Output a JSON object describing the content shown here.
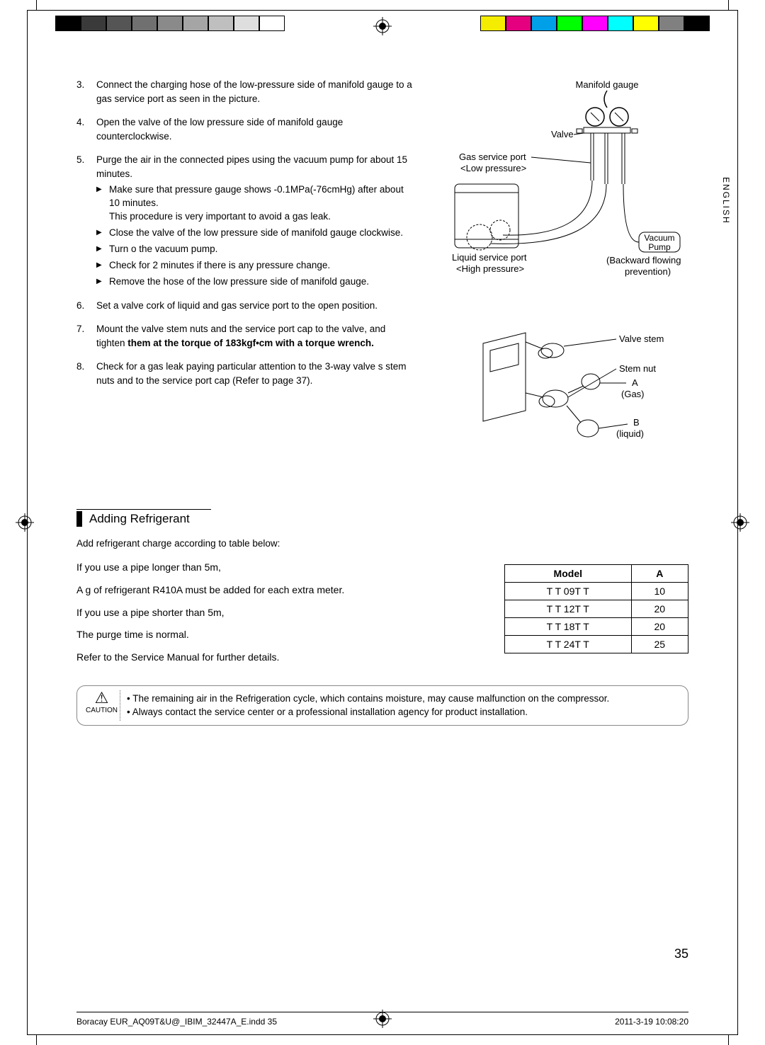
{
  "crop_marks": {
    "swatches_left": [
      "#000000",
      "#3a3a3a",
      "#555555",
      "#707070",
      "#8a8a8a",
      "#a5a5a5",
      "#bfbfbf",
      "#dedede",
      "#ffffff"
    ],
    "swatches_right": [
      "#f4ed00",
      "#e4007f",
      "#00a0e9",
      "#00ff00",
      "#ff00ff",
      "#00ffff",
      "#ffff00",
      "#808080",
      "#000000"
    ]
  },
  "side_language": "ENGLISH",
  "steps": {
    "3": {
      "num": "3.",
      "text": "Connect the charging hose of the low-pressure side of manifold gauge to a gas service port as seen in the picture."
    },
    "4": {
      "num": "4.",
      "text": "Open the valve of the low pressure side of manifold gauge counterclockwise."
    },
    "5": {
      "num": "5.",
      "text": "Purge the air in the connected pipes using the vacuum pump for about 15 minutes.",
      "subs": [
        "Make sure that pressure gauge shows -0.1MPa(-76cmHg) after about 10 minutes.\nThis procedure is very important to avoid a gas leak.",
        "Close the valve of the low pressure side of manifold gauge clockwise.",
        "Turn o  the vacuum pump.",
        "Check for 2 minutes if there is any pressure change.",
        "Remove the hose of the low pressure side of manifold gauge."
      ]
    },
    "6": {
      "num": "6.",
      "text": "Set a valve cork of liquid and gas service port to the open position."
    },
    "7": {
      "num": "7.",
      "text_a": "Mount the valve stem nuts and the service port cap to the valve, and tighten ",
      "text_b": "them at the torque of 183kgf•cm with a torque wrench."
    },
    "8": {
      "num": "8.",
      "text": "Check for a gas leak paying particular attention to the 3-way valve s stem nuts and to the service port cap (Refer to page 37)."
    }
  },
  "figure1": {
    "manifold_gauge": "Manifold gauge",
    "valve": "Valve",
    "gas_port": "Gas service port",
    "low_pressure": "<Low pressure>",
    "liquid_port": "Liquid service port",
    "high_pressure": "<High pressure>",
    "vacuum_pump_l1": "Vacuum",
    "vacuum_pump_l2": "Pump",
    "backflow_l1": "(Backward flowing",
    "backflow_l2": "prevention)"
  },
  "figure2": {
    "valve_stem": "Valve stem",
    "stem_nut": "Stem nut",
    "a": "A",
    "a_sub": "(Gas)",
    "b": "B",
    "b_sub": "(liquid)"
  },
  "adding": {
    "title": "Adding Refrigerant",
    "intro": "Add refrigerant charge according to table below:",
    "p1": "If you use a pipe longer than 5m,",
    "p2": " A g of refrigerant R410A must be added for each extra meter.",
    "p3": "If you use a pipe shorter than 5m,",
    "p4": "The purge time is normal.",
    "p5": "Refer to the Service Manual for further details.",
    "table": {
      "head": [
        "Model",
        "A"
      ],
      "rows": [
        [
          "T T 09T T",
          "10"
        ],
        [
          "T T 12T T",
          "20"
        ],
        [
          "T T 18T T",
          "20"
        ],
        [
          "T T 24T T",
          "25"
        ]
      ]
    }
  },
  "caution": {
    "label": "CAUTION",
    "items": [
      "The remaining air in the Refrigeration cycle, which contains moisture, may cause malfunction on the compressor.",
      "Always contact the service center or a professional installation agency for product installation."
    ]
  },
  "page_number": "35",
  "footer": {
    "left": "Boracay EUR_AQ09T&U@_IBIM_32447A_E.indd   35",
    "right": "2011-3-19   10:08:20"
  }
}
